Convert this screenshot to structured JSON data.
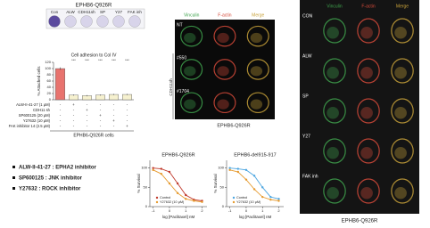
{
  "adhesion_panel": {
    "title": "EPHB6-Q926R",
    "well_labels": [
      "Con",
      "ALW",
      "CDH11sh",
      "SP",
      "Y27",
      "FAK inh"
    ]
  },
  "chart_data": [
    {
      "type": "bar",
      "title": "Cell adhesion to Col IV",
      "y_label": "% Attached cells",
      "categories": [
        null,
        null,
        null,
        null,
        null,
        null
      ],
      "values": [
        100,
        15,
        13,
        15,
        17,
        17
      ],
      "errors": [
        4,
        2,
        2,
        2,
        2,
        2
      ],
      "colors": [
        "#e8736e",
        "#f6f1cf",
        "#f6f1cf",
        "#f6f1cf",
        "#f6f1cf",
        "#f6f1cf"
      ],
      "significance": [
        null,
        "***",
        "***",
        "***",
        "***",
        "***"
      ],
      "ylim": [
        0,
        120
      ],
      "yticks": [
        0,
        20,
        40,
        60,
        80,
        100,
        120
      ],
      "treatments": [
        {
          "name": "ALW-II-41-27 (1 μM)",
          "signs": [
            "-",
            "+",
            "-",
            "-",
            "-",
            "-"
          ]
        },
        {
          "name": "CDH11 sh",
          "signs": [
            "-",
            "-",
            "+",
            "-",
            "-",
            "-"
          ]
        },
        {
          "name": "SP600125 (20 μM)",
          "signs": [
            "-",
            "-",
            "-",
            "+",
            "-",
            "-"
          ]
        },
        {
          "name": "Y27632 (10 μM)",
          "signs": [
            "-",
            "-",
            "-",
            "-",
            "+",
            "-"
          ]
        },
        {
          "name": "FAK inhibitor 14 (2.5 μM)",
          "signs": [
            "-",
            "-",
            "-",
            "-",
            "-",
            "+"
          ]
        }
      ],
      "caption": "EPHB6-Q926R cells"
    },
    {
      "type": "line",
      "title": "EPHB6-Q926R",
      "x_label": "log [Paclitaxel] nM",
      "y_label": "% Survival",
      "x": [
        -1,
        -0.5,
        0,
        0.5,
        1,
        1.5,
        2
      ],
      "series": [
        {
          "name": "Control",
          "color": "#c0392b",
          "values": [
            100,
            98,
            90,
            60,
            30,
            18,
            15
          ]
        },
        {
          "name": "Y27632 (10 μM)",
          "color": "#e69a2e",
          "values": [
            95,
            85,
            60,
            35,
            20,
            15,
            12
          ]
        }
      ],
      "xlim": [
        -1.2,
        2.3
      ],
      "xticks": [
        -1,
        0,
        1,
        2
      ],
      "ylim": [
        0,
        120
      ],
      "yticks": [
        0,
        50,
        100
      ]
    },
    {
      "type": "line",
      "title": "EPHB6-del915-917",
      "x_label": "log [Paclitaxel] nM",
      "y_label": "% Survival",
      "x": [
        -1,
        -0.5,
        0,
        0.5,
        1,
        1.5,
        2
      ],
      "series": [
        {
          "name": "Control",
          "color": "#4da6e0",
          "values": [
            100,
            98,
            95,
            80,
            50,
            25,
            20
          ]
        },
        {
          "name": "Y27632 (10 μM)",
          "color": "#e69a2e",
          "values": [
            95,
            90,
            70,
            45,
            25,
            18,
            15
          ]
        }
      ],
      "xlim": [
        -1.2,
        2.3
      ],
      "xticks": [
        -1,
        0,
        1,
        2
      ],
      "ylim": [
        0,
        120
      ],
      "yticks": [
        0,
        50,
        100
      ]
    }
  ],
  "knockdown_panel": {
    "headers": [
      "Vinculin",
      "F-actin",
      "Merge"
    ],
    "rows": [
      "NT",
      "#550",
      "#1704"
    ],
    "group_label": "CDH11sh",
    "caption": "EPHB6-Q926R"
  },
  "inhibitor_panel": {
    "headers": [
      "Vinculin",
      "F-actin",
      "Merge"
    ],
    "rows": [
      "CON",
      "ALW",
      "SP",
      "Y27",
      "FAK inh"
    ],
    "caption": "EPHB6-Q926R"
  },
  "notes": [
    "ALW-II-41-27 : EPHA2 inhibitor",
    "SP600125 : JNK inhibitor",
    "Y27632 : ROCK inhibitor"
  ]
}
